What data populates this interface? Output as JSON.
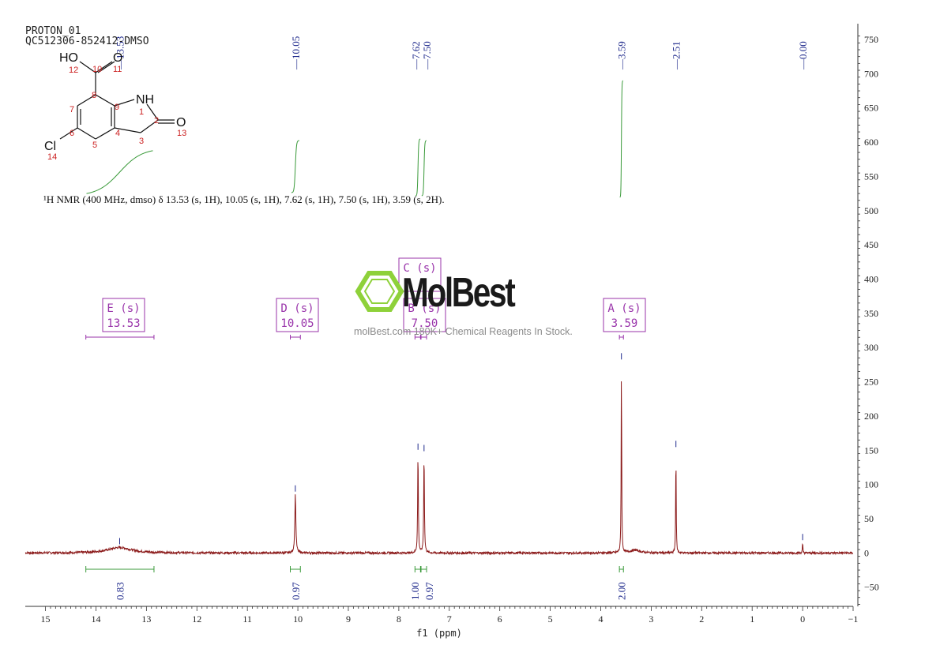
{
  "header": {
    "line1": "PROTON_01",
    "line2": "QC512306-852412-DMSO"
  },
  "summary": "¹H NMR (400 MHz, dmso) δ 13.53 (s, 1H), 10.05 (s, 1H), 7.62 (s, 1H), 7.50 (s, 1H), 3.59 (s, 2H).",
  "watermark": {
    "brand": "MolBest",
    "tagline": "molBest.com 180K+ Chemical Reagents In Stock."
  },
  "colors": {
    "spectrum": "#8b1a1a",
    "integral": "#3a9a3a",
    "peak_label": "#1f2a8c",
    "multiplet": "#9933aa",
    "atom_number": "#cc2222",
    "logo": "#8ed13a"
  },
  "molecule": {
    "atoms": [
      "HO",
      "O",
      "NH",
      "O",
      "Cl"
    ],
    "numbers": [
      "12",
      "10",
      "11",
      "7",
      "8",
      "9",
      "1",
      "2",
      "13",
      "6",
      "4",
      "3",
      "5",
      "14"
    ]
  },
  "chart_data": {
    "type": "line",
    "xlabel": "f1 (ppm)",
    "xlim": [
      15.4,
      -1.0
    ],
    "ylim": [
      -78,
      765
    ],
    "x_ticks": [
      15,
      14,
      13,
      12,
      11,
      10,
      9,
      8,
      7,
      6,
      5,
      4,
      3,
      2,
      1,
      0,
      -1
    ],
    "y_ticks": [
      -50,
      0,
      50,
      100,
      150,
      200,
      250,
      300,
      350,
      400,
      450,
      500,
      550,
      600,
      650,
      700,
      750
    ],
    "peaks": [
      {
        "ppm": 13.53,
        "height": 8,
        "width": 0.28,
        "label": "13.53"
      },
      {
        "ppm": 10.05,
        "height": 85,
        "width": 0.012,
        "label": "10.05"
      },
      {
        "ppm": 7.62,
        "height": 146,
        "width": 0.008,
        "label": "7.62"
      },
      {
        "ppm": 7.5,
        "height": 144,
        "width": 0.008,
        "label": "7.50"
      },
      {
        "ppm": 3.59,
        "height": 278,
        "width": 0.006,
        "label": "3.59"
      },
      {
        "ppm": 3.32,
        "height": 4,
        "width": 0.12,
        "label": ""
      },
      {
        "ppm": 2.51,
        "height": 150,
        "width": 0.006,
        "label": "2.51"
      },
      {
        "ppm": 0.0,
        "height": 14,
        "width": 0.006,
        "label": "0.00"
      }
    ],
    "multiplets": [
      {
        "letter": "E",
        "mult": "(s)",
        "shift": "13.53",
        "range": [
          14.2,
          12.85
        ]
      },
      {
        "letter": "D",
        "mult": "(s)",
        "shift": "10.05",
        "range": [
          10.15,
          9.95
        ]
      },
      {
        "letter": "C",
        "mult": "(s)",
        "shift": "7.62",
        "range": [
          7.68,
          7.57
        ]
      },
      {
        "letter": "B",
        "mult": "(s)",
        "shift": "7.50",
        "range": [
          7.56,
          7.45
        ]
      },
      {
        "letter": "A",
        "mult": "(s)",
        "shift": "3.59",
        "range": [
          3.63,
          3.55
        ]
      }
    ],
    "integrals": [
      {
        "ppm": 13.53,
        "value": "0.83",
        "range": [
          14.2,
          12.85
        ]
      },
      {
        "ppm": 10.05,
        "value": "0.97",
        "range": [
          10.15,
          9.95
        ]
      },
      {
        "ppm": 7.62,
        "value": "1.00",
        "range": [
          7.68,
          7.57
        ]
      },
      {
        "ppm": 7.5,
        "value": "0.97",
        "range": [
          7.56,
          7.45
        ]
      },
      {
        "ppm": 3.59,
        "value": "2.00",
        "range": [
          3.63,
          3.55
        ]
      }
    ]
  }
}
